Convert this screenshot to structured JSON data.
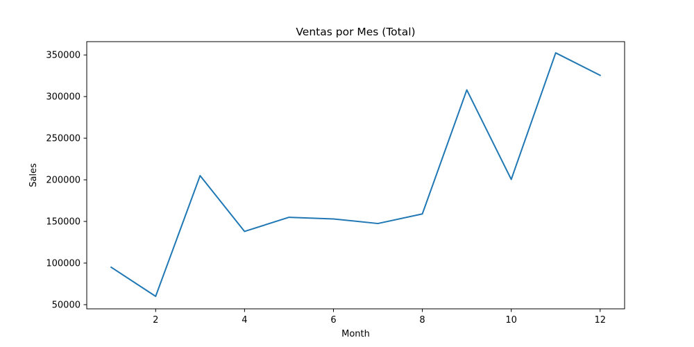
{
  "chart_data": {
    "type": "line",
    "title": "Ventas por Mes (Total)",
    "xlabel": "Month",
    "ylabel": "Sales",
    "xlim": [
      0.45,
      12.55
    ],
    "ylim": [
      45000,
      366000
    ],
    "xticks": [
      2,
      4,
      6,
      8,
      10,
      12
    ],
    "xtick_labels": [
      "2",
      "4",
      "6",
      "8",
      "10",
      "12"
    ],
    "yticks": [
      50000,
      100000,
      150000,
      200000,
      250000,
      300000,
      350000
    ],
    "ytick_labels": [
      "50000",
      "100000",
      "150000",
      "200000",
      "250000",
      "300000",
      "350000"
    ],
    "grid": false,
    "series": [
      {
        "x": [
          1,
          2,
          3,
          4,
          5,
          6,
          7,
          8,
          9,
          10,
          11,
          12
        ],
        "values": [
          95000,
          60000,
          205000,
          138000,
          155000,
          153000,
          147500,
          159000,
          308000,
          200500,
          352500,
          325500
        ],
        "color": "#1f77b4"
      }
    ]
  }
}
